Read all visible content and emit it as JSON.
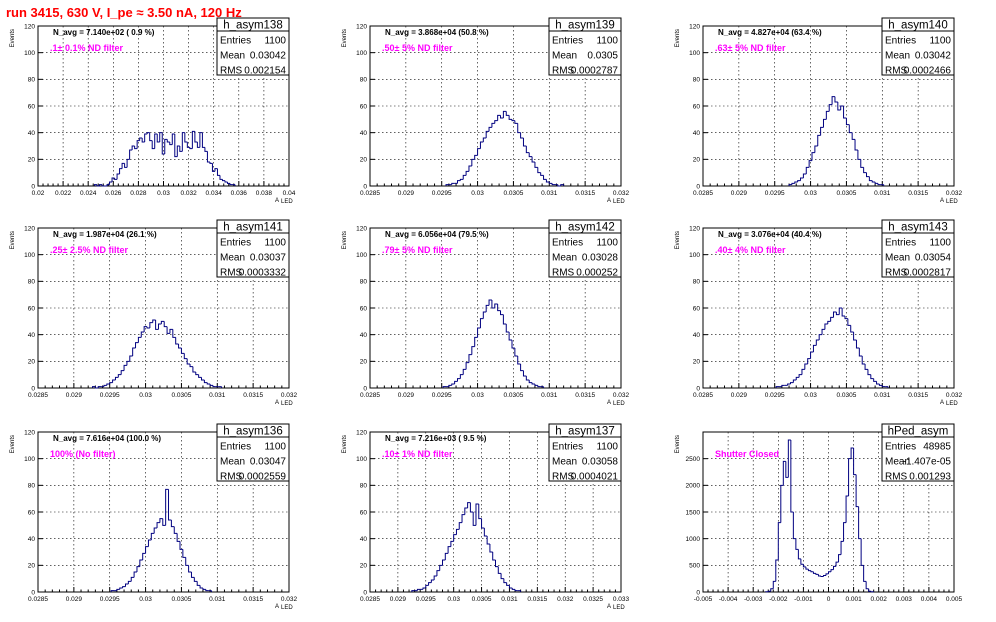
{
  "run_title": "run 3415,   630 V, I_pe ≈ 3.50 nA, 120 Hz",
  "chart_data": [
    {
      "type": "bar",
      "name": "h_asym138",
      "stats": {
        "entries_label": "Entries",
        "entries": "1100",
        "mean_label": "Mean",
        "mean": "0.03042",
        "rms_label": "RMS",
        "rms": "0.002154"
      },
      "avg_text": "N_avg = 7.140e+02 ( 0.9 %)",
      "filter_text": ".1± 0.1% ND filter",
      "xlim": [
        0.02,
        0.04
      ],
      "xticks": [
        "0.02",
        "0.022",
        "0.024",
        "0.026",
        "0.028",
        "0.03",
        "0.032",
        "0.034",
        "0.036",
        "0.038",
        "0.04"
      ],
      "ylim": [
        0,
        120
      ],
      "yticks": [
        "0",
        "20",
        "40",
        "60",
        "80",
        "100",
        "120"
      ],
      "ylabel": "Events",
      "xlabel": "A",
      "bin_start": 0.0245,
      "bin_width": 0.0002,
      "values": [
        1,
        0,
        1,
        0,
        0,
        1,
        3,
        6,
        5,
        9,
        13,
        17,
        14,
        20,
        27,
        30,
        28,
        34,
        36,
        33,
        39,
        40,
        34,
        28,
        39,
        33,
        40,
        24,
        35,
        33,
        31,
        39,
        22,
        30,
        26,
        40,
        33,
        29,
        28,
        41,
        33,
        29,
        40,
        29,
        26,
        18,
        17,
        11,
        13,
        8,
        5,
        4,
        3,
        2,
        1,
        1
      ]
    },
    {
      "type": "bar",
      "name": "h_asym139",
      "stats": {
        "entries_label": "Entries",
        "entries": "1100",
        "mean_label": "Mean",
        "mean": "0.0305",
        "rms_label": "RMS",
        "rms": "0.0002787"
      },
      "avg_text": "N_avg = 3.868e+04 (50.8 %)",
      "filter_text": ".50± 5% ND filter",
      "xlim": [
        0.0285,
        0.032
      ],
      "xticks": [
        "0.0285",
        "0.029",
        "0.0295",
        "0.03",
        "0.0305",
        "0.031",
        "0.0315",
        "0.032"
      ],
      "ylim": [
        0,
        120
      ],
      "yticks": [
        "0",
        "20",
        "40",
        "60",
        "80",
        "100",
        "120"
      ],
      "ylabel": "Events",
      "xlabel": "A",
      "bin_start": 0.02956,
      "bin_width": 4e-05,
      "values": [
        1,
        1,
        2,
        2,
        4,
        5,
        8,
        11,
        15,
        20,
        23,
        28,
        33,
        36,
        41,
        44,
        47,
        49,
        53,
        51,
        56,
        53,
        50,
        49,
        47,
        40,
        36,
        30,
        25,
        22,
        18,
        14,
        10,
        8,
        5,
        3,
        2,
        1,
        1,
        0,
        1
      ]
    },
    {
      "type": "bar",
      "name": "h_asym140",
      "stats": {
        "entries_label": "Entries",
        "entries": "1100",
        "mean_label": "Mean",
        "mean": "0.03042",
        "rms_label": "RMS",
        "rms": "0.0002466"
      },
      "avg_text": "N_avg = 4.827e+04 (63.4 %)",
      "filter_text": ".63± 5% ND filter",
      "xlim": [
        0.0285,
        0.032
      ],
      "xticks": [
        "0.0285",
        "0.029",
        "0.0295",
        "0.03",
        "0.0305",
        "0.031",
        "0.0315",
        "0.032"
      ],
      "ylim": [
        0,
        120
      ],
      "yticks": [
        "0",
        "20",
        "40",
        "60",
        "80",
        "100",
        "120"
      ],
      "ylabel": "Events",
      "xlabel": "A",
      "bin_start": 0.0297,
      "bin_width": 4e-05,
      "values": [
        1,
        2,
        3,
        4,
        6,
        9,
        14,
        19,
        25,
        30,
        38,
        44,
        50,
        56,
        61,
        67,
        63,
        57,
        60,
        51,
        46,
        40,
        35,
        27,
        20,
        14,
        10,
        7,
        4,
        3,
        2,
        1,
        1
      ]
    },
    {
      "type": "bar",
      "name": "h_asym141",
      "stats": {
        "entries_label": "Entries",
        "entries": "1100",
        "mean_label": "Mean",
        "mean": "0.03037",
        "rms_label": "RMS",
        "rms": "0.0003332"
      },
      "avg_text": "N_avg = 1.987e+04 (26.1 %)",
      "filter_text": ".25± 2.5% ND filter",
      "xlim": [
        0.0285,
        0.032
      ],
      "xticks": [
        "0.0285",
        "0.029",
        "0.0295",
        "0.03",
        "0.0305",
        "0.031",
        "0.0315",
        "0.032"
      ],
      "ylim": [
        0,
        120
      ],
      "yticks": [
        "0",
        "20",
        "40",
        "60",
        "80",
        "100",
        "120"
      ],
      "ylabel": "Events",
      "xlabel": "A",
      "bin_start": 0.02926,
      "bin_width": 4e-05,
      "values": [
        1,
        0,
        1,
        1,
        2,
        3,
        4,
        6,
        8,
        10,
        13,
        17,
        20,
        24,
        30,
        34,
        38,
        42,
        46,
        45,
        49,
        51,
        44,
        48,
        50,
        46,
        41,
        44,
        38,
        33,
        30,
        26,
        22,
        18,
        16,
        12,
        10,
        8,
        6,
        4,
        3,
        2,
        1,
        1,
        1
      ]
    },
    {
      "type": "bar",
      "name": "h_asym142",
      "stats": {
        "entries_label": "Entries",
        "entries": "1100",
        "mean_label": "Mean",
        "mean": "0.03028",
        "rms_label": "RMS",
        "rms": "0.000252"
      },
      "avg_text": "N_avg = 6.056e+04 (79.5 %)",
      "filter_text": ".79± 5% ND filter",
      "xlim": [
        0.0285,
        0.032
      ],
      "xticks": [
        "0.0285",
        "0.029",
        "0.0295",
        "0.03",
        "0.0305",
        "0.031",
        "0.0315",
        "0.032"
      ],
      "ylim": [
        0,
        120
      ],
      "yticks": [
        "0",
        "20",
        "40",
        "60",
        "80",
        "100",
        "120"
      ],
      "ylabel": "Events",
      "xlabel": "A",
      "bin_start": 0.02952,
      "bin_width": 4e-05,
      "values": [
        1,
        1,
        2,
        3,
        5,
        7,
        10,
        14,
        19,
        25,
        31,
        38,
        45,
        52,
        57,
        62,
        66,
        60,
        63,
        58,
        55,
        48,
        42,
        36,
        30,
        24,
        18,
        13,
        9,
        6,
        4,
        3,
        2,
        1,
        1
      ]
    },
    {
      "type": "bar",
      "name": "h_asym143",
      "stats": {
        "entries_label": "Entries",
        "entries": "1100",
        "mean_label": "Mean",
        "mean": "0.03054",
        "rms_label": "RMS",
        "rms": "0.0002817"
      },
      "avg_text": "N_avg = 3.076e+04 (40.4 %)",
      "filter_text": ".40± 4% ND filter",
      "xlim": [
        0.0285,
        0.032
      ],
      "xticks": [
        "0.0285",
        "0.029",
        "0.0295",
        "0.03",
        "0.0305",
        "0.031",
        "0.0315",
        "0.032"
      ],
      "ylim": [
        0,
        120
      ],
      "yticks": [
        "0",
        "20",
        "40",
        "60",
        "80",
        "100",
        "120"
      ],
      "ylabel": "Events",
      "xlabel": "A",
      "bin_start": 0.02952,
      "bin_width": 4e-05,
      "values": [
        1,
        1,
        2,
        2,
        3,
        4,
        6,
        8,
        10,
        14,
        18,
        22,
        27,
        32,
        36,
        40,
        44,
        48,
        50,
        53,
        57,
        55,
        60,
        54,
        52,
        47,
        42,
        36,
        30,
        24,
        18,
        14,
        10,
        7,
        5,
        3,
        2,
        1,
        1
      ]
    },
    {
      "type": "bar",
      "name": "h_asym136",
      "stats": {
        "entries_label": "Entries",
        "entries": "1100",
        "mean_label": "Mean",
        "mean": "0.03047",
        "rms_label": "RMS",
        "rms": "0.0002559"
      },
      "avg_text": "N_avg = 7.616e+04 (100.0 %)",
      "filter_text": "100% (No filter)",
      "xlim": [
        0.0285,
        0.032
      ],
      "xticks": [
        "0.0285",
        "0.029",
        "0.0295",
        "0.03",
        "0.0305",
        "0.031",
        "0.0315",
        "0.032"
      ],
      "ylim": [
        0,
        120
      ],
      "yticks": [
        "0",
        "20",
        "40",
        "60",
        "80",
        "100",
        "120"
      ],
      "ylabel": "Events",
      "xlabel": "A",
      "bin_start": 0.02952,
      "bin_width": 4e-05,
      "values": [
        1,
        1,
        2,
        3,
        4,
        6,
        8,
        11,
        15,
        19,
        24,
        29,
        34,
        39,
        44,
        48,
        52,
        55,
        50,
        77,
        54,
        49,
        44,
        38,
        32,
        26,
        20,
        15,
        11,
        8,
        5,
        3,
        2,
        1,
        1
      ]
    },
    {
      "type": "bar",
      "name": "h_asym137",
      "stats": {
        "entries_label": "Entries",
        "entries": "1100",
        "mean_label": "Mean",
        "mean": "0.03058",
        "rms_label": "RMS",
        "rms": "0.0004021"
      },
      "avg_text": "N_avg = 7.216e+03 ( 9.5 %)",
      "filter_text": ".10± 1% ND filter",
      "xlim": [
        0.0285,
        0.033
      ],
      "xticks": [
        "0.0285",
        "0.029",
        "0.0295",
        "0.03",
        "0.0305",
        "0.031",
        "0.0315",
        "0.032",
        "0.0325",
        "0.033"
      ],
      "ylim": [
        0,
        120
      ],
      "yticks": [
        "0",
        "20",
        "40",
        "60",
        "80",
        "100",
        "120"
      ],
      "ylabel": "Events",
      "xlabel": "A",
      "bin_start": 0.02925,
      "bin_width": 5e-05,
      "values": [
        1,
        1,
        2,
        2,
        3,
        5,
        7,
        9,
        12,
        16,
        20,
        24,
        29,
        34,
        38,
        43,
        47,
        52,
        58,
        63,
        67,
        60,
        50,
        66,
        55,
        48,
        42,
        36,
        30,
        24,
        19,
        14,
        10,
        7,
        5,
        3,
        2,
        1,
        1
      ]
    },
    {
      "type": "bar",
      "name": "hPed_asym",
      "stats": {
        "entries_label": "Entries",
        "entries": "48985",
        "mean_label": "Mean",
        "mean": "-1.407e-05",
        "rms_label": "RMS",
        "rms": "0.001293"
      },
      "avg_text": "",
      "filter_text": "Shutter Closed",
      "xlim": [
        -0.005,
        0.005
      ],
      "xticks": [
        "-0.005",
        "-0.004",
        "-0.003",
        "-0.002",
        "-0.001",
        "0",
        "0.001",
        "0.002",
        "0.003",
        "0.004",
        "0.005"
      ],
      "ylim": [
        0,
        3000
      ],
      "yticks": [
        "0",
        "500",
        "1000",
        "1500",
        "2000",
        "2500"
      ],
      "ylabel": "Events",
      "xlabel": "",
      "bin_start": -0.0025,
      "bin_width": 0.0001,
      "values": [
        5,
        15,
        60,
        200,
        600,
        1300,
        2000,
        2450,
        2150,
        2850,
        1500,
        1000,
        800,
        620,
        520,
        470,
        430,
        400,
        380,
        350,
        330,
        300,
        290,
        310,
        340,
        380,
        420,
        480,
        560,
        700,
        950,
        1300,
        1800,
        2500,
        2700,
        2200,
        1600,
        1000,
        500,
        200,
        60,
        15,
        5
      ]
    }
  ]
}
